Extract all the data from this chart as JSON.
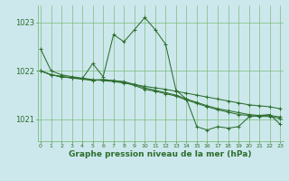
{
  "bg_color": "#cce8ec",
  "grid_color": "#7dbb7d",
  "line_color": "#2d6e2d",
  "marker_color": "#2d6e2d",
  "xlabel": "Graphe pression niveau de la mer (hPa)",
  "xlabel_fontsize": 6.5,
  "ylabel_ticks": [
    1021,
    1022,
    1023
  ],
  "ytick_fontsize": 6,
  "xtick_fontsize": 4.5,
  "xlim": [
    -0.3,
    23.3
  ],
  "ylim": [
    1020.55,
    1023.35
  ],
  "series": [
    [
      1022.45,
      1022.0,
      1021.92,
      1021.88,
      1021.85,
      1021.82,
      1021.8,
      1021.78,
      1021.75,
      1021.72,
      1021.68,
      1021.65,
      1021.62,
      1021.58,
      1021.54,
      1021.5,
      1021.46,
      1021.42,
      1021.38,
      1021.34,
      1021.3,
      1021.28,
      1021.26,
      1021.22
    ],
    [
      1022.0,
      1021.92,
      1021.88,
      1021.85,
      1021.83,
      1021.8,
      1021.82,
      1021.8,
      1021.78,
      1021.72,
      1021.65,
      1021.6,
      1021.55,
      1021.5,
      1021.42,
      1021.35,
      1021.28,
      1021.22,
      1021.18,
      1021.14,
      1021.1,
      1021.08,
      1021.08,
      1021.05
    ],
    [
      1022.0,
      1021.92,
      1021.88,
      1021.86,
      1021.84,
      1021.81,
      1021.82,
      1021.8,
      1021.76,
      1021.7,
      1021.62,
      1021.58,
      1021.53,
      1021.48,
      1021.4,
      1021.33,
      1021.26,
      1021.2,
      1021.15,
      1021.1,
      1021.08,
      1021.06,
      1021.06,
      1021.02
    ],
    [
      1022.0,
      1021.92,
      1021.88,
      1021.86,
      1021.84,
      1022.15,
      1021.88,
      1022.75,
      1022.6,
      1022.85,
      1023.1,
      1022.85,
      1022.55,
      1021.6,
      1021.42,
      1020.85,
      1020.78,
      1020.85,
      1020.82,
      1020.85,
      1021.05,
      1021.08,
      1021.1,
      1020.9
    ]
  ]
}
